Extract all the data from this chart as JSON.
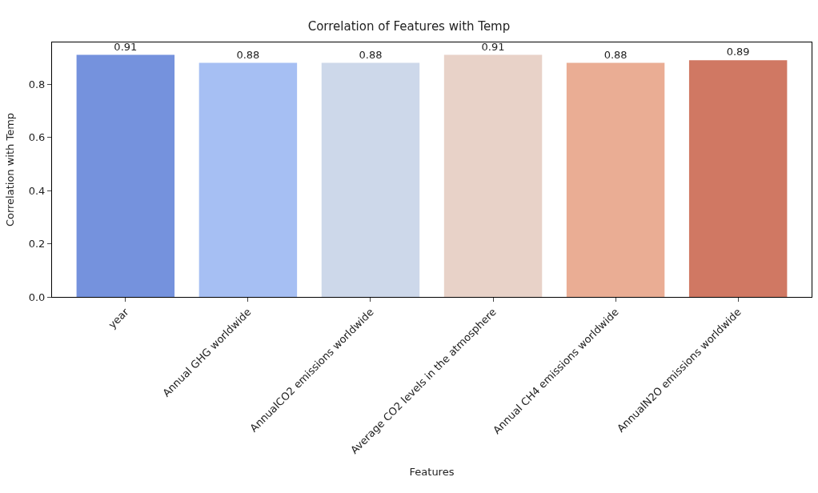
{
  "chart_data": {
    "type": "bar",
    "title": "Correlation of Features with Temp",
    "xlabel": "Features",
    "ylabel": "Correlation with Temp",
    "categories": [
      "year",
      "Annual GHG worldwide",
      "AnnualCO2 emissions worldwide",
      "Average CO2 levels in the atmosphere",
      "Annual CH4 emissions worldwide",
      "AnnualN2O emissions worldwide"
    ],
    "values": [
      0.91,
      0.88,
      0.88,
      0.91,
      0.88,
      0.89
    ],
    "colors": [
      "#7592dd",
      "#a6bff3",
      "#cdd8ea",
      "#e8d2c8",
      "#eaad94",
      "#d07863"
    ],
    "ylim": [
      0,
      0.957
    ],
    "yticks": [
      {
        "value": 0,
        "label": "0.0"
      },
      0.2,
      0.4,
      0.6,
      0.8
    ],
    "data_labels": true
  }
}
